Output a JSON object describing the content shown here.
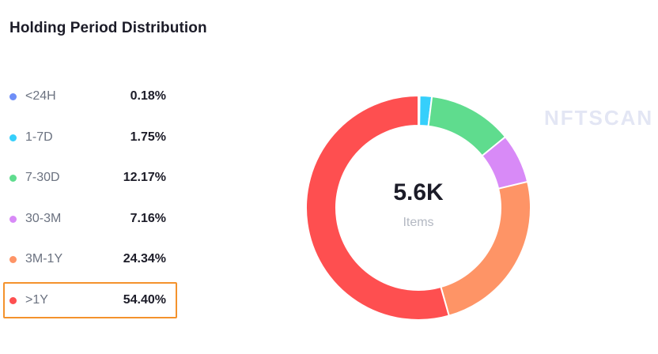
{
  "title": "Holding Period Distribution",
  "watermark": "NFTSCAN",
  "center": {
    "value": "5.6K",
    "label": "Items"
  },
  "legend": [
    {
      "label": "<24H",
      "value": "0.18%",
      "color": "#6e8ef7"
    },
    {
      "label": "1-7D",
      "value": "1.75%",
      "color": "#36cffb"
    },
    {
      "label": "7-30D",
      "value": "12.17%",
      "color": "#5fdc8e"
    },
    {
      "label": "30-3M",
      "value": "7.16%",
      "color": "#d88af7"
    },
    {
      "label": "3M-1Y",
      "value": "24.34%",
      "color": "#fe9466"
    },
    {
      "label": ">1Y",
      "value": "54.40%",
      "color": "#fe4f50"
    }
  ],
  "selected_index": 5,
  "chart_data": {
    "type": "pie",
    "variant": "donut",
    "categories": [
      "<24H",
      "1-7D",
      "7-30D",
      "30-3M",
      "3M-1Y",
      ">1Y"
    ],
    "values": [
      0.18,
      1.75,
      12.17,
      7.16,
      24.34,
      54.4
    ],
    "colors": [
      "#6e8ef7",
      "#36cffb",
      "#5fdc8e",
      "#d88af7",
      "#fe9466",
      "#fe4f50"
    ],
    "title": "Holding Period Distribution",
    "center_text": "5.6K",
    "center_subtext": "Items",
    "legend_position": "left"
  }
}
